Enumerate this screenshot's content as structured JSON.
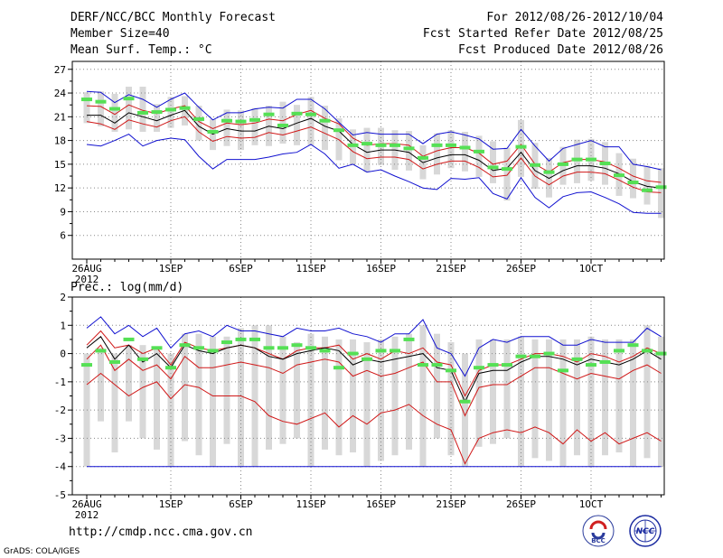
{
  "header": {
    "title": "DERF/NCC/BCC Monthly Forecast",
    "member_size": "Member Size=40",
    "variable": "Mean Surf. Temp.: °C",
    "forecast_period": "For 2012/08/26-2012/10/04",
    "started_refer": "Fcst Started Refer Date 2012/08/25",
    "produced": "Fcst Produced Date 2012/08/26"
  },
  "footer": {
    "url": "http://cmdp.ncc.cma.gov.cn",
    "credit": "GrADS: COLA/IGES",
    "logo_bcc": "BCC",
    "logo_ncc": "NCC"
  },
  "colors": {
    "box": "#d8d8d8",
    "median": "#55e055",
    "mean": "#000000",
    "inner": "#d01818",
    "outer": "#1010d0",
    "grid": "#888888"
  },
  "chart_data": [
    {
      "type": "line",
      "title": "Mean Surf. Temp.: °C",
      "x_ticks": [
        {
          "day": 0,
          "label": "26AUG",
          "sub": "2012"
        },
        {
          "day": 6,
          "label": "1SEP"
        },
        {
          "day": 11,
          "label": "6SEP"
        },
        {
          "day": 16,
          "label": "11SEP"
        },
        {
          "day": 21,
          "label": "16SEP"
        },
        {
          "day": 26,
          "label": "21SEP"
        },
        {
          "day": 31,
          "label": "26SEP"
        },
        {
          "day": 36,
          "label": "1OCT"
        }
      ],
      "ylim": [
        3,
        28
      ],
      "y_ticks": [
        6,
        9,
        12,
        15,
        18,
        21,
        24,
        27
      ],
      "grid": true,
      "series": [
        {
          "name": "mean",
          "values": [
            21.2,
            21.2,
            20.2,
            21.5,
            21.0,
            20.5,
            21.2,
            21.8,
            19.8,
            18.8,
            19.5,
            19.2,
            19.2,
            19.8,
            19.5,
            20.2,
            20.8,
            19.8,
            19.2,
            17.5,
            16.5,
            16.8,
            16.8,
            16.5,
            15.2,
            15.8,
            16.2,
            16.2,
            15.5,
            14.2,
            14.5,
            16.5,
            14.2,
            13.2,
            14.2,
            14.8,
            14.8,
            14.5,
            13.8,
            12.8,
            12.2,
            12.0
          ]
        },
        {
          "name": "inner_upper",
          "values": [
            22.4,
            22.3,
            21.3,
            22.5,
            21.8,
            21.4,
            22.0,
            22.4,
            20.4,
            19.5,
            20.2,
            20.0,
            20.2,
            20.7,
            20.5,
            21.3,
            21.8,
            20.8,
            20.1,
            18.3,
            17.4,
            17.6,
            17.6,
            17.4,
            16.0,
            16.7,
            17.1,
            17.1,
            16.4,
            15.0,
            15.4,
            17.5,
            15.0,
            14.0,
            15.2,
            15.6,
            15.6,
            15.3,
            14.5,
            13.5,
            12.9,
            12.7
          ]
        },
        {
          "name": "inner_lower",
          "values": [
            20.4,
            20.1,
            19.4,
            20.6,
            20.1,
            19.7,
            20.5,
            21.0,
            19.1,
            17.9,
            18.5,
            18.3,
            18.4,
            19.0,
            18.7,
            19.2,
            19.7,
            18.9,
            18.1,
            16.6,
            15.7,
            15.9,
            15.9,
            15.6,
            14.4,
            15.0,
            15.4,
            15.4,
            14.6,
            13.4,
            13.6,
            15.8,
            13.5,
            12.4,
            13.5,
            14.0,
            14.0,
            13.8,
            13.0,
            12.1,
            11.5,
            11.4
          ]
        },
        {
          "name": "outer_upper",
          "values": [
            24.2,
            24.1,
            22.8,
            23.8,
            23.2,
            22.2,
            23.2,
            24.0,
            22.2,
            20.6,
            21.5,
            21.5,
            22.0,
            22.2,
            22.1,
            23.2,
            23.2,
            22.0,
            20.3,
            18.7,
            19.0,
            18.8,
            18.8,
            18.8,
            17.6,
            18.8,
            19.1,
            18.7,
            18.2,
            16.9,
            17.0,
            19.4,
            17.3,
            15.4,
            17.0,
            17.5,
            18.0,
            17.2,
            17.2,
            15.0,
            14.7,
            14.3
          ]
        },
        {
          "name": "outer_lower",
          "values": [
            17.5,
            17.3,
            18.0,
            18.8,
            17.3,
            18.0,
            18.3,
            18.1,
            16.0,
            14.4,
            15.6,
            15.6,
            15.6,
            15.9,
            16.3,
            16.5,
            17.5,
            16.3,
            14.5,
            15.0,
            14.0,
            14.3,
            13.5,
            12.8,
            12.0,
            11.8,
            13.2,
            13.1,
            13.3,
            11.3,
            10.6,
            13.3,
            10.8,
            9.5,
            10.9,
            11.4,
            11.5,
            10.8,
            10.0,
            8.9,
            8.8,
            8.8
          ]
        },
        {
          "name": "box_high",
          "values": [
            24.1,
            24.2,
            23.9,
            24.8,
            24.8,
            22.6,
            23.5,
            23.6,
            22.4,
            20.7,
            21.9,
            21.8,
            22.1,
            22.4,
            22.9,
            22.5,
            23.5,
            22.4,
            20.8,
            19.4,
            19.6,
            19.6,
            19.3,
            19.2,
            17.4,
            18.9,
            19.3,
            19.1,
            18.6,
            17.9,
            17.1,
            20.6,
            17.7,
            15.8,
            17.2,
            18.1,
            18.2,
            17.8,
            16.4,
            15.7,
            14.8,
            14.5
          ]
        },
        {
          "name": "box_low",
          "values": [
            20.2,
            19.8,
            19.1,
            19.4,
            19.1,
            19.1,
            19.6,
            19.9,
            18.0,
            16.8,
            17.3,
            16.8,
            17.4,
            17.3,
            17.6,
            17.4,
            17.4,
            16.8,
            15.5,
            15.0,
            14.0,
            14.9,
            14.3,
            14.2,
            13.1,
            13.7,
            14.5,
            14.1,
            13.4,
            12.6,
            10.4,
            13.4,
            11.9,
            10.8,
            12.4,
            12.6,
            12.9,
            12.4,
            11.0,
            10.7,
            9.9,
            8.2
          ]
        },
        {
          "name": "median",
          "values": [
            23.2,
            22.9,
            22.0,
            23.3,
            21.5,
            21.6,
            21.9,
            22.1,
            20.7,
            19.1,
            20.5,
            20.4,
            20.6,
            21.3,
            19.9,
            21.4,
            21.3,
            20.5,
            19.3,
            17.4,
            17.6,
            17.4,
            17.4,
            17.0,
            15.8,
            17.4,
            17.4,
            17.1,
            16.6,
            14.6,
            14.4,
            17.2,
            14.9,
            14.0,
            15.0,
            15.6,
            15.6,
            15.1,
            13.6,
            12.7,
            11.7,
            12.1
          ]
        }
      ]
    },
    {
      "type": "line",
      "title": "Prec.: log(mm/d)",
      "x_ticks": [
        {
          "day": 0,
          "label": "26AUG",
          "sub": "2012"
        },
        {
          "day": 6,
          "label": "1SEP"
        },
        {
          "day": 11,
          "label": "6SEP"
        },
        {
          "day": 16,
          "label": "11SEP"
        },
        {
          "day": 21,
          "label": "16SEP"
        },
        {
          "day": 26,
          "label": "21SEP"
        },
        {
          "day": 31,
          "label": "26SEP"
        },
        {
          "day": 36,
          "label": "1OCT"
        }
      ],
      "ylim": [
        -5,
        2
      ],
      "y_ticks": [
        -5,
        -4,
        -3,
        -2,
        -1,
        0,
        1,
        2
      ],
      "grid": true,
      "series": [
        {
          "name": "mean",
          "values": [
            0.2,
            0.6,
            -0.2,
            0.3,
            -0.3,
            0.0,
            -0.5,
            0.3,
            0.1,
            0.0,
            0.2,
            0.3,
            0.2,
            -0.1,
            -0.2,
            0.0,
            0.1,
            0.2,
            0.1,
            -0.4,
            -0.2,
            -0.3,
            -0.2,
            -0.1,
            0.0,
            -0.5,
            -0.6,
            -1.7,
            -0.7,
            -0.6,
            -0.6,
            -0.3,
            -0.1,
            -0.1,
            -0.2,
            -0.4,
            -0.2,
            -0.3,
            -0.4,
            -0.2,
            0.1,
            -0.2
          ]
        },
        {
          "name": "inner_upper",
          "values": [
            0.3,
            0.8,
            0.2,
            0.3,
            0.0,
            0.2,
            -0.4,
            0.4,
            0.2,
            0.1,
            0.2,
            0.3,
            0.2,
            0.0,
            -0.2,
            0.1,
            0.2,
            0.2,
            0.3,
            -0.2,
            0.0,
            -0.2,
            0.1,
            0.0,
            0.2,
            -0.3,
            -0.4,
            -1.5,
            -0.6,
            -0.4,
            -0.4,
            -0.2,
            0.0,
            0.0,
            -0.1,
            -0.3,
            0.0,
            -0.1,
            -0.3,
            -0.1,
            0.2,
            0.0
          ]
        },
        {
          "name": "inner_lower",
          "values": [
            -0.2,
            0.3,
            -0.6,
            -0.2,
            -0.6,
            -0.4,
            -0.9,
            -0.1,
            -0.5,
            -0.5,
            -0.4,
            -0.3,
            -0.4,
            -0.5,
            -0.7,
            -0.4,
            -0.3,
            -0.2,
            -0.3,
            -0.8,
            -0.6,
            -0.8,
            -0.7,
            -0.5,
            -0.3,
            -1.0,
            -1.0,
            -2.2,
            -1.2,
            -1.1,
            -1.1,
            -0.8,
            -0.5,
            -0.5,
            -0.7,
            -0.9,
            -0.7,
            -0.8,
            -0.9,
            -0.6,
            -0.4,
            -0.7
          ]
        },
        {
          "name": "inner2_lower",
          "values": [
            -1.1,
            -0.7,
            -1.1,
            -1.5,
            -1.2,
            -1.0,
            -1.6,
            -1.1,
            -1.2,
            -1.5,
            -1.5,
            -1.5,
            -1.7,
            -2.2,
            -2.4,
            -2.5,
            -2.3,
            -2.1,
            -2.6,
            -2.2,
            -2.5,
            -2.1,
            -2.0,
            -1.8,
            -2.2,
            -2.5,
            -2.7,
            -3.9,
            -3.0,
            -2.8,
            -2.7,
            -2.8,
            -2.6,
            -2.8,
            -3.2,
            -2.7,
            -3.1,
            -2.8,
            -3.2,
            -3.0,
            -2.8,
            -3.1
          ]
        },
        {
          "name": "outer_upper",
          "values": [
            0.9,
            1.3,
            0.7,
            1.0,
            0.6,
            0.9,
            0.2,
            0.7,
            0.8,
            0.6,
            1.0,
            0.8,
            0.8,
            0.7,
            0.6,
            0.9,
            0.8,
            0.8,
            0.9,
            0.7,
            0.6,
            0.4,
            0.7,
            0.7,
            1.2,
            0.2,
            0.0,
            -0.8,
            0.2,
            0.5,
            0.4,
            0.6,
            0.6,
            0.6,
            0.3,
            0.3,
            0.5,
            0.4,
            0.4,
            0.4,
            0.9,
            0.6
          ]
        },
        {
          "name": "box_high",
          "values": [
            0.0,
            0.2,
            0.0,
            0.3,
            0.3,
            0.2,
            0.0,
            0.7,
            0.7,
            0.6,
            0.6,
            0.9,
            1.0,
            1.0,
            0.6,
            0.4,
            0.7,
            0.6,
            0.5,
            0.5,
            0.4,
            0.5,
            0.6,
            0.7,
            1.0,
            0.7,
            0.4,
            0.0,
            0.5,
            0.5,
            0.5,
            0.6,
            0.5,
            0.5,
            0.5,
            0.5,
            0.6,
            0.5,
            0.5,
            0.5,
            1.0,
            0.6
          ]
        },
        {
          "name": "box_low",
          "values": [
            -4.0,
            -2.4,
            -3.5,
            -2.4,
            -3.0,
            -3.4,
            -4.0,
            -3.1,
            -3.6,
            -4.0,
            -3.2,
            -4.0,
            -4.0,
            -3.4,
            -3.2,
            -3.0,
            -4.0,
            -3.4,
            -3.6,
            -3.5,
            -4.0,
            -3.8,
            -3.6,
            -3.4,
            -4.0,
            -3.0,
            -3.6,
            -4.0,
            -3.3,
            -3.2,
            -3.0,
            -4.0,
            -3.7,
            -3.8,
            -4.0,
            -3.6,
            -4.0,
            -3.6,
            -3.5,
            -4.0,
            -3.7,
            -4.0
          ]
        },
        {
          "name": "median",
          "values": [
            -0.4,
            0.1,
            -0.3,
            0.5,
            -0.2,
            0.2,
            -0.5,
            0.3,
            0.2,
            0.1,
            0.4,
            0.5,
            0.5,
            0.2,
            0.2,
            0.3,
            0.2,
            0.1,
            -0.5,
            0.0,
            -0.2,
            0.1,
            0.1,
            0.5,
            -0.4,
            -0.4,
            -0.6,
            -1.7,
            -0.5,
            -0.4,
            -0.4,
            -0.1,
            -0.1,
            0.0,
            -0.6,
            -0.2,
            -0.4,
            -0.3,
            0.1,
            0.3,
            0.1,
            0.0
          ]
        },
        {
          "name": "floor",
          "values": [
            -4.0,
            -4.0
          ]
        }
      ]
    }
  ]
}
